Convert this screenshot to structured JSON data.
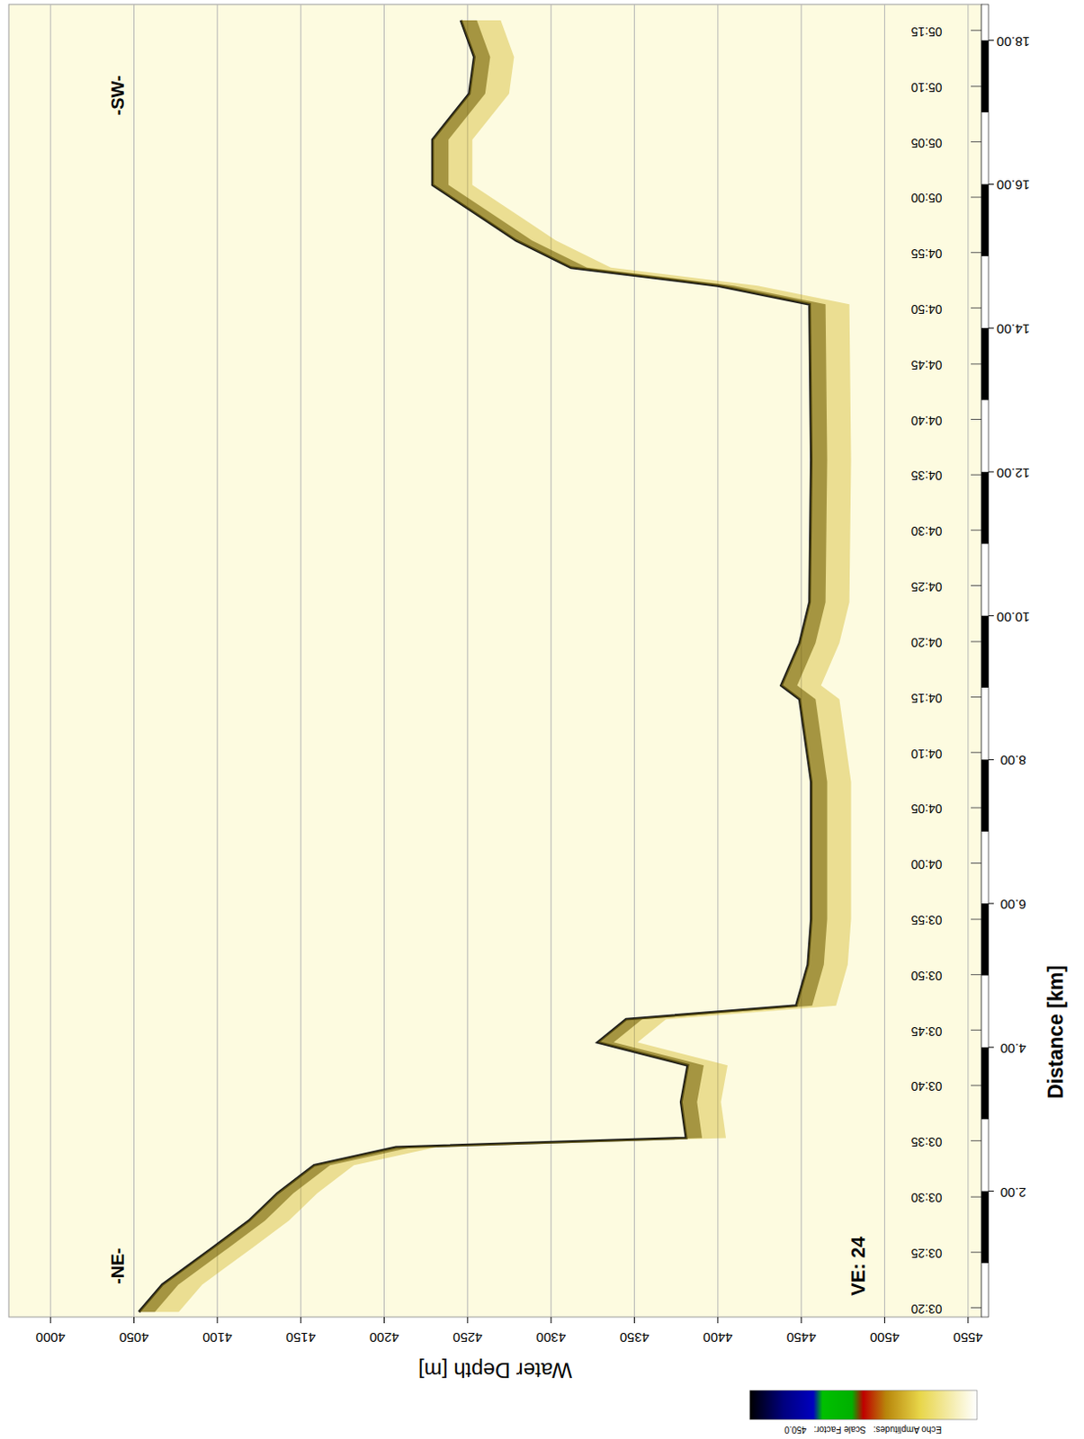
{
  "chart_data": {
    "type": "line",
    "x_label": "Distance [km]",
    "y_label": "Water Depth [m]",
    "x": [
      0.32,
      0.7,
      1.21,
      1.59,
      1.97,
      2.36,
      2.61,
      2.74,
      3.24,
      3.75,
      4.07,
      4.39,
      4.58,
      5.15,
      5.78,
      7.69,
      8.84,
      9.03,
      9.62,
      10.19,
      12.17,
      14.33,
      14.59,
      14.84,
      15.22,
      15.99,
      16.62,
      17.26,
      17.77,
      18.28
    ],
    "values": [
      4053,
      4067,
      4097,
      4119,
      4136,
      4158,
      4207,
      4381,
      4378,
      4382,
      4328,
      4345,
      4447,
      4454,
      4456,
      4456,
      4449,
      4438,
      4449,
      4455,
      4456,
      4455,
      4400,
      4312,
      4279,
      4229,
      4229,
      4251,
      4254,
      4246
    ],
    "color": "#1a1a1a",
    "xlim": [
      0.25,
      18.5
    ],
    "ylim": [
      3975,
      4558
    ],
    "xticks": [
      {
        "value": 2,
        "label": "2.00"
      },
      {
        "value": 4,
        "label": "4.00"
      },
      {
        "value": 6,
        "label": "6.00"
      },
      {
        "value": 8,
        "label": "8.00"
      },
      {
        "value": 10,
        "label": "10.00"
      },
      {
        "value": 12,
        "label": "12.00"
      },
      {
        "value": 14,
        "label": "14.00"
      },
      {
        "value": 16,
        "label": "16.00"
      },
      {
        "value": 18,
        "label": "18.00"
      }
    ],
    "x2ticks": [
      {
        "value": 0.38,
        "label": "03:20"
      },
      {
        "value": 1.15,
        "label": "03:25"
      },
      {
        "value": 1.92,
        "label": "03:30"
      },
      {
        "value": 2.7,
        "label": "03:35"
      },
      {
        "value": 3.47,
        "label": "03:40"
      },
      {
        "value": 4.24,
        "label": "03:45"
      },
      {
        "value": 5.01,
        "label": "03:50"
      },
      {
        "value": 5.78,
        "label": "03:55"
      },
      {
        "value": 6.56,
        "label": "04:00"
      },
      {
        "value": 7.33,
        "label": "04:05"
      },
      {
        "value": 8.1,
        "label": "04:10"
      },
      {
        "value": 8.87,
        "label": "04:15"
      },
      {
        "value": 9.64,
        "label": "04:20"
      },
      {
        "value": 10.42,
        "label": "04:25"
      },
      {
        "value": 11.19,
        "label": "04:30"
      },
      {
        "value": 11.96,
        "label": "04:35"
      },
      {
        "value": 12.73,
        "label": "04:40"
      },
      {
        "value": 13.5,
        "label": "04:45"
      },
      {
        "value": 14.28,
        "label": "04:50"
      },
      {
        "value": 15.05,
        "label": "04:55"
      },
      {
        "value": 15.82,
        "label": "05:00"
      },
      {
        "value": 16.59,
        "label": "05:05"
      },
      {
        "value": 17.36,
        "label": "05:10"
      },
      {
        "value": 18.14,
        "label": "05:15"
      }
    ],
    "yticks": [
      4000,
      4050,
      4100,
      4150,
      4200,
      4250,
      4300,
      4350,
      4400,
      4450,
      4500,
      4550
    ],
    "grid": true,
    "annotations": [
      "-NE-",
      "-SW-",
      "VE: 24"
    ],
    "colorbar_label": "Echo Amplitudes:   Scale Factor:   450.0"
  }
}
